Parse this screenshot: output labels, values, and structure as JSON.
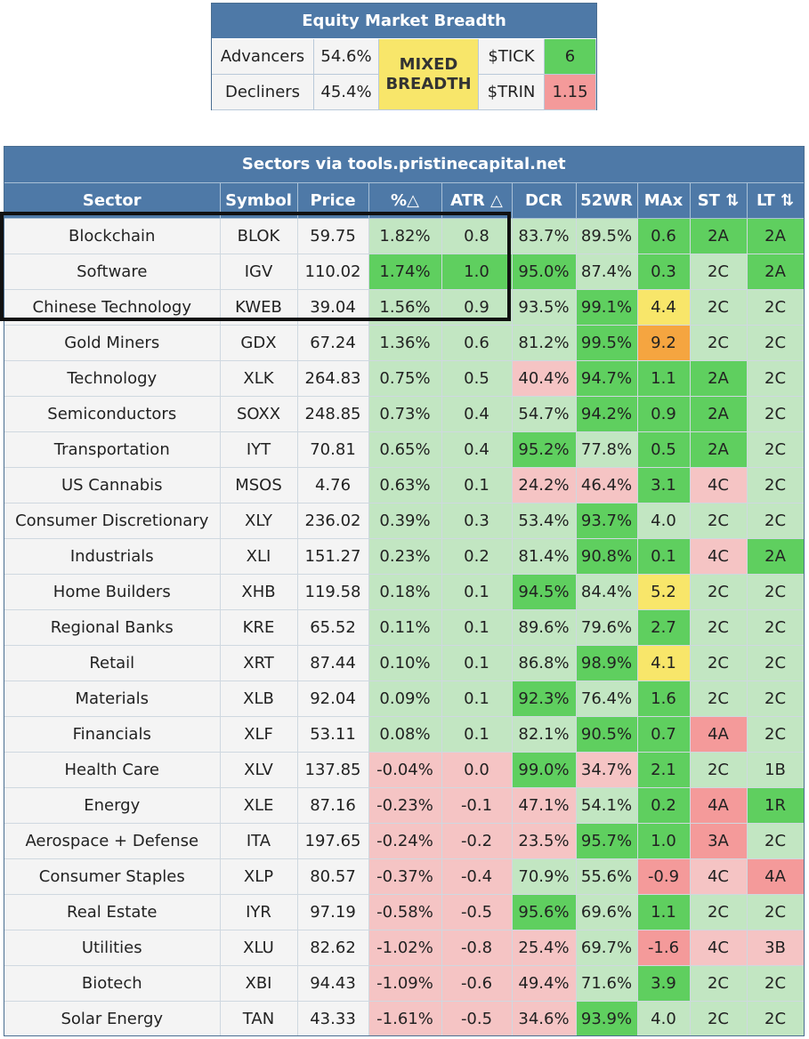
{
  "breadth": {
    "title": "Equity Market Breadth",
    "advancers_label": "Advancers",
    "advancers_value": "54.6%",
    "decliners_label": "Decliners",
    "decliners_value": "45.4%",
    "status_line1": "MIXED",
    "status_line2": "BREADTH",
    "tick_label": "$TICK",
    "tick_value": "6",
    "trin_label": "$TRIN",
    "trin_value": "1.15"
  },
  "sectors": {
    "caption": "Sectors via tools.pristinecapital.net",
    "columns": [
      "Sector",
      "Symbol",
      "Price",
      "%△",
      "ATR △",
      "DCR",
      "52WR",
      "MAx",
      "ST ⇅",
      "LT ⇅"
    ],
    "rows": [
      {
        "c": [
          "Blockchain",
          "BLOK",
          "59.75",
          "1.82%",
          "0.8",
          "83.7%",
          "89.5%",
          "0.6",
          "2A",
          "2A"
        ],
        "k": [
          "n",
          "n",
          "n",
          "g1",
          "g1",
          "g1",
          "g1",
          "g2",
          "g2",
          "g2"
        ]
      },
      {
        "c": [
          "Software",
          "IGV",
          "110.02",
          "1.74%",
          "1.0",
          "95.0%",
          "87.4%",
          "0.3",
          "2C",
          "2A"
        ],
        "k": [
          "n",
          "n",
          "n",
          "g2",
          "g2",
          "g2",
          "g1",
          "g2",
          "g1",
          "g2"
        ]
      },
      {
        "c": [
          "Chinese Technology",
          "KWEB",
          "39.04",
          "1.56%",
          "0.9",
          "93.5%",
          "99.1%",
          "4.4",
          "2C",
          "2C"
        ],
        "k": [
          "n",
          "n",
          "n",
          "g1",
          "g1",
          "g1",
          "g2",
          "y",
          "g1",
          "g1"
        ]
      },
      {
        "c": [
          "Gold Miners",
          "GDX",
          "67.24",
          "1.36%",
          "0.6",
          "81.2%",
          "99.5%",
          "9.2",
          "2C",
          "2C"
        ],
        "k": [
          "n",
          "n",
          "n",
          "g1",
          "g1",
          "g1",
          "g2",
          "o",
          "g1",
          "g1"
        ]
      },
      {
        "c": [
          "Technology",
          "XLK",
          "264.83",
          "0.75%",
          "0.5",
          "40.4%",
          "94.7%",
          "1.1",
          "2A",
          "2C"
        ],
        "k": [
          "n",
          "n",
          "n",
          "g1",
          "g1",
          "r1",
          "g2",
          "g2",
          "g2",
          "g1"
        ]
      },
      {
        "c": [
          "Semiconductors",
          "SOXX",
          "248.85",
          "0.73%",
          "0.4",
          "54.7%",
          "94.2%",
          "0.9",
          "2A",
          "2C"
        ],
        "k": [
          "n",
          "n",
          "n",
          "g1",
          "g1",
          "g1",
          "g2",
          "g2",
          "g2",
          "g1"
        ]
      },
      {
        "c": [
          "Transportation",
          "IYT",
          "70.81",
          "0.65%",
          "0.4",
          "95.2%",
          "77.8%",
          "0.5",
          "2A",
          "2C"
        ],
        "k": [
          "n",
          "n",
          "n",
          "g1",
          "g1",
          "g2",
          "g1",
          "g2",
          "g2",
          "g1"
        ]
      },
      {
        "c": [
          "US Cannabis",
          "MSOS",
          "4.76",
          "0.63%",
          "0.1",
          "24.2%",
          "46.4%",
          "3.1",
          "4C",
          "2C"
        ],
        "k": [
          "n",
          "n",
          "n",
          "g1",
          "g1",
          "r1",
          "r1",
          "g2",
          "r1",
          "g1"
        ]
      },
      {
        "c": [
          "Consumer Discretionary",
          "XLY",
          "236.02",
          "0.39%",
          "0.3",
          "53.4%",
          "93.7%",
          "4.0",
          "2C",
          "2C"
        ],
        "k": [
          "n",
          "n",
          "n",
          "g1",
          "g1",
          "g1",
          "g2",
          "g1",
          "g1",
          "g1"
        ]
      },
      {
        "c": [
          "Industrials",
          "XLI",
          "151.27",
          "0.23%",
          "0.2",
          "81.4%",
          "90.8%",
          "0.1",
          "4C",
          "2A"
        ],
        "k": [
          "n",
          "n",
          "n",
          "g1",
          "g1",
          "g1",
          "g2",
          "g2",
          "r1",
          "g2"
        ]
      },
      {
        "c": [
          "Home Builders",
          "XHB",
          "119.58",
          "0.18%",
          "0.1",
          "94.5%",
          "84.4%",
          "5.2",
          "2C",
          "2C"
        ],
        "k": [
          "n",
          "n",
          "n",
          "g1",
          "g1",
          "g2",
          "g1",
          "y",
          "g1",
          "g1"
        ]
      },
      {
        "c": [
          "Regional Banks",
          "KRE",
          "65.52",
          "0.11%",
          "0.1",
          "89.6%",
          "79.6%",
          "2.7",
          "2C",
          "2C"
        ],
        "k": [
          "n",
          "n",
          "n",
          "g1",
          "g1",
          "g1",
          "g1",
          "g2",
          "g1",
          "g1"
        ]
      },
      {
        "c": [
          "Retail",
          "XRT",
          "87.44",
          "0.10%",
          "0.1",
          "86.8%",
          "98.9%",
          "4.1",
          "2C",
          "2C"
        ],
        "k": [
          "n",
          "n",
          "n",
          "g1",
          "g1",
          "g1",
          "g2",
          "y",
          "g1",
          "g1"
        ]
      },
      {
        "c": [
          "Materials",
          "XLB",
          "92.04",
          "0.09%",
          "0.1",
          "92.3%",
          "76.4%",
          "1.6",
          "2C",
          "2C"
        ],
        "k": [
          "n",
          "n",
          "n",
          "g1",
          "g1",
          "g2",
          "g1",
          "g2",
          "g1",
          "g1"
        ]
      },
      {
        "c": [
          "Financials",
          "XLF",
          "53.11",
          "0.08%",
          "0.1",
          "82.1%",
          "90.5%",
          "0.7",
          "4A",
          "2C"
        ],
        "k": [
          "n",
          "n",
          "n",
          "g1",
          "g1",
          "g1",
          "g2",
          "g2",
          "r2",
          "g1"
        ]
      },
      {
        "c": [
          "Health Care",
          "XLV",
          "137.85",
          "-0.04%",
          "0.0",
          "99.0%",
          "34.7%",
          "2.1",
          "2C",
          "1B"
        ],
        "k": [
          "n",
          "n",
          "n",
          "r1",
          "r1",
          "g2",
          "r1",
          "g2",
          "g1",
          "g1"
        ]
      },
      {
        "c": [
          "Energy",
          "XLE",
          "87.16",
          "-0.23%",
          "-0.1",
          "47.1%",
          "54.1%",
          "0.2",
          "4A",
          "1R"
        ],
        "k": [
          "n",
          "n",
          "n",
          "r1",
          "r1",
          "r1",
          "g1",
          "g2",
          "r2",
          "g2"
        ]
      },
      {
        "c": [
          "Aerospace + Defense",
          "ITA",
          "197.65",
          "-0.24%",
          "-0.2",
          "23.5%",
          "95.7%",
          "1.0",
          "3A",
          "2C"
        ],
        "k": [
          "n",
          "n",
          "n",
          "r1",
          "r1",
          "r1",
          "g2",
          "g2",
          "r2",
          "g1"
        ]
      },
      {
        "c": [
          "Consumer Staples",
          "XLP",
          "80.57",
          "-0.37%",
          "-0.4",
          "70.9%",
          "55.6%",
          "-0.9",
          "4C",
          "4A"
        ],
        "k": [
          "n",
          "n",
          "n",
          "r1",
          "r1",
          "g1",
          "g1",
          "r2",
          "r1",
          "r2"
        ]
      },
      {
        "c": [
          "Real Estate",
          "IYR",
          "97.19",
          "-0.58%",
          "-0.5",
          "95.6%",
          "69.6%",
          "1.1",
          "2C",
          "2C"
        ],
        "k": [
          "n",
          "n",
          "n",
          "r1",
          "r1",
          "g2",
          "g1",
          "g2",
          "g1",
          "g1"
        ]
      },
      {
        "c": [
          "Utilities",
          "XLU",
          "82.62",
          "-1.02%",
          "-0.8",
          "25.4%",
          "69.7%",
          "-1.6",
          "4C",
          "3B"
        ],
        "k": [
          "n",
          "n",
          "n",
          "r1",
          "r1",
          "r1",
          "g1",
          "r2",
          "r1",
          "r1"
        ]
      },
      {
        "c": [
          "Biotech",
          "XBI",
          "94.43",
          "-1.09%",
          "-0.6",
          "49.4%",
          "71.6%",
          "3.9",
          "2C",
          "2C"
        ],
        "k": [
          "n",
          "n",
          "n",
          "r1",
          "r1",
          "r1",
          "g1",
          "g2",
          "g1",
          "g1"
        ]
      },
      {
        "c": [
          "Solar Energy",
          "TAN",
          "43.33",
          "-1.61%",
          "-0.5",
          "34.6%",
          "93.9%",
          "4.0",
          "2C",
          "2C"
        ],
        "k": [
          "n",
          "n",
          "n",
          "r1",
          "r1",
          "r1",
          "g2",
          "g1",
          "g1",
          "g1"
        ]
      }
    ]
  }
}
